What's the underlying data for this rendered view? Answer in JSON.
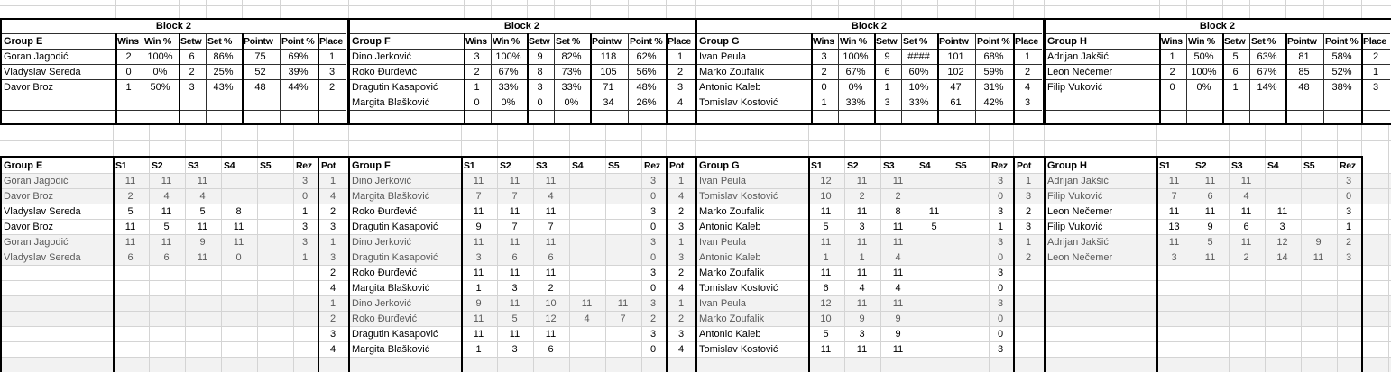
{
  "colors": {
    "thick_border": "#000000",
    "thin_border": "#2e2e2e",
    "grid_line": "#d4d4d4",
    "band_fill": "#f2f2f2",
    "text": "#000000",
    "muted_text": "#595959"
  },
  "block_label": "Block 2",
  "standings_columns": [
    "Wins",
    "Win %",
    "Setw",
    "Set %",
    "Pointw",
    "Point %",
    "Place"
  ],
  "match_columns": [
    "S1",
    "S2",
    "S3",
    "S4",
    "S5",
    "Rez"
  ],
  "pot_label": "Pot",
  "groups": [
    {
      "name": "Group E",
      "has_pot_column": true,
      "standings": [
        {
          "player": "Goran Jagodić",
          "values": [
            "2",
            "100%",
            "6",
            "86%",
            "75",
            "69%",
            "1"
          ]
        },
        {
          "player": "Vladyslav Sereda",
          "values": [
            "0",
            "0%",
            "2",
            "25%",
            "52",
            "39%",
            "3"
          ]
        },
        {
          "player": "Davor Broz",
          "values": [
            "1",
            "50%",
            "3",
            "43%",
            "48",
            "44%",
            "2"
          ]
        }
      ],
      "matches": [
        {
          "player": "Goran Jagodić",
          "sets": [
            "11",
            "11",
            "11",
            "",
            ""
          ],
          "rez": "3",
          "pot": "1"
        },
        {
          "player": "Davor Broz",
          "sets": [
            "2",
            "4",
            "4",
            "",
            ""
          ],
          "rez": "0",
          "pot": "4"
        },
        {
          "player": "Vladyslav Sereda",
          "sets": [
            "5",
            "11",
            "5",
            "8",
            ""
          ],
          "rez": "1",
          "pot": "2"
        },
        {
          "player": "Davor Broz",
          "sets": [
            "11",
            "5",
            "11",
            "11",
            ""
          ],
          "rez": "3",
          "pot": "3"
        },
        {
          "player": "Goran Jagodić",
          "sets": [
            "11",
            "11",
            "9",
            "11",
            ""
          ],
          "rez": "3",
          "pot": "1"
        },
        {
          "player": "Vladyslav Sereda",
          "sets": [
            "6",
            "6",
            "11",
            "0",
            ""
          ],
          "rez": "1",
          "pot": "3"
        },
        {
          "player": "",
          "sets": [
            "",
            "",
            "",
            "",
            ""
          ],
          "rez": "",
          "pot": "2"
        },
        {
          "player": "",
          "sets": [
            "",
            "",
            "",
            "",
            ""
          ],
          "rez": "",
          "pot": "4"
        },
        {
          "player": "",
          "sets": [
            "",
            "",
            "",
            "",
            ""
          ],
          "rez": "",
          "pot": "1"
        },
        {
          "player": "",
          "sets": [
            "",
            "",
            "",
            "",
            ""
          ],
          "rez": "",
          "pot": "2"
        },
        {
          "player": "",
          "sets": [
            "",
            "",
            "",
            "",
            ""
          ],
          "rez": "",
          "pot": "3"
        },
        {
          "player": "",
          "sets": [
            "",
            "",
            "",
            "",
            ""
          ],
          "rez": "",
          "pot": "4"
        }
      ]
    },
    {
      "name": "Group F",
      "has_pot_column": true,
      "standings": [
        {
          "player": "Dino Jerković",
          "values": [
            "3",
            "100%",
            "9",
            "82%",
            "118",
            "62%",
            "1"
          ]
        },
        {
          "player": "Roko Đurđević",
          "values": [
            "2",
            "67%",
            "8",
            "73%",
            "105",
            "56%",
            "2"
          ]
        },
        {
          "player": "Dragutin Kasapović",
          "values": [
            "1",
            "33%",
            "3",
            "33%",
            "71",
            "48%",
            "3"
          ]
        },
        {
          "player": "Margita Blašković",
          "values": [
            "0",
            "0%",
            "0",
            "0%",
            "34",
            "26%",
            "4"
          ]
        }
      ],
      "matches": [
        {
          "player": "Dino Jerković",
          "sets": [
            "11",
            "11",
            "11",
            "",
            ""
          ],
          "rez": "3",
          "pot": "1"
        },
        {
          "player": "Margita Blašković",
          "sets": [
            "7",
            "7",
            "4",
            "",
            ""
          ],
          "rez": "0",
          "pot": "4"
        },
        {
          "player": "Roko Đurđević",
          "sets": [
            "11",
            "11",
            "11",
            "",
            ""
          ],
          "rez": "3",
          "pot": "2"
        },
        {
          "player": "Dragutin Kasapović",
          "sets": [
            "9",
            "7",
            "7",
            "",
            ""
          ],
          "rez": "0",
          "pot": "3"
        },
        {
          "player": "Dino Jerković",
          "sets": [
            "11",
            "11",
            "11",
            "",
            ""
          ],
          "rez": "3",
          "pot": "1"
        },
        {
          "player": "Dragutin Kasapović",
          "sets": [
            "3",
            "6",
            "6",
            "",
            ""
          ],
          "rez": "0",
          "pot": "3"
        },
        {
          "player": "Roko Đurđević",
          "sets": [
            "11",
            "11",
            "11",
            "",
            ""
          ],
          "rez": "3",
          "pot": "2"
        },
        {
          "player": "Margita Blašković",
          "sets": [
            "1",
            "3",
            "2",
            "",
            ""
          ],
          "rez": "0",
          "pot": "4"
        },
        {
          "player": "Dino Jerković",
          "sets": [
            "9",
            "11",
            "10",
            "11",
            "11"
          ],
          "rez": "3",
          "pot": "1"
        },
        {
          "player": "Roko Đurđević",
          "sets": [
            "11",
            "5",
            "12",
            "4",
            "7"
          ],
          "rez": "2",
          "pot": "2"
        },
        {
          "player": "Dragutin Kasapović",
          "sets": [
            "11",
            "11",
            "11",
            "",
            ""
          ],
          "rez": "3",
          "pot": "3"
        },
        {
          "player": "Margita Blašković",
          "sets": [
            "1",
            "3",
            "6",
            "",
            ""
          ],
          "rez": "0",
          "pot": "4"
        }
      ]
    },
    {
      "name": "Group G",
      "has_pot_column": true,
      "standings": [
        {
          "player": "Ivan Peula",
          "values": [
            "3",
            "100%",
            "9",
            "####",
            "101",
            "68%",
            "1"
          ]
        },
        {
          "player": "Marko Zoufalik",
          "values": [
            "2",
            "67%",
            "6",
            "60%",
            "102",
            "59%",
            "2"
          ]
        },
        {
          "player": "Antonio Kaleb",
          "values": [
            "0",
            "0%",
            "1",
            "10%",
            "47",
            "31%",
            "4"
          ]
        },
        {
          "player": "Tomislav Kostović",
          "values": [
            "1",
            "33%",
            "3",
            "33%",
            "61",
            "42%",
            "3"
          ]
        }
      ],
      "matches": [
        {
          "player": "Ivan Peula",
          "sets": [
            "12",
            "11",
            "11",
            "",
            ""
          ],
          "rez": "3",
          "pot": "1"
        },
        {
          "player": "Tomislav Kostović",
          "sets": [
            "10",
            "2",
            "2",
            "",
            ""
          ],
          "rez": "0",
          "pot": "3"
        },
        {
          "player": "Marko Zoufalik",
          "sets": [
            "11",
            "11",
            "8",
            "11",
            ""
          ],
          "rez": "3",
          "pot": "2"
        },
        {
          "player": "Antonio Kaleb",
          "sets": [
            "5",
            "3",
            "11",
            "5",
            ""
          ],
          "rez": "1",
          "pot": "3"
        },
        {
          "player": "Ivan Peula",
          "sets": [
            "11",
            "11",
            "11",
            "",
            ""
          ],
          "rez": "3",
          "pot": "1"
        },
        {
          "player": "Antonio Kaleb",
          "sets": [
            "1",
            "1",
            "4",
            "",
            ""
          ],
          "rez": "0",
          "pot": "2"
        },
        {
          "player": "Marko Zoufalik",
          "sets": [
            "11",
            "11",
            "11",
            "",
            ""
          ],
          "rez": "3",
          "pot": ""
        },
        {
          "player": "Tomislav Kostović",
          "sets": [
            "6",
            "4",
            "4",
            "",
            ""
          ],
          "rez": "0",
          "pot": ""
        },
        {
          "player": "Ivan Peula",
          "sets": [
            "12",
            "11",
            "11",
            "",
            ""
          ],
          "rez": "3",
          "pot": ""
        },
        {
          "player": "Marko Zoufalik",
          "sets": [
            "10",
            "9",
            "9",
            "",
            ""
          ],
          "rez": "0",
          "pot": ""
        },
        {
          "player": "Antonio Kaleb",
          "sets": [
            "5",
            "3",
            "9",
            "",
            ""
          ],
          "rez": "0",
          "pot": ""
        },
        {
          "player": "Tomislav Kostović",
          "sets": [
            "11",
            "11",
            "11",
            "",
            ""
          ],
          "rez": "3",
          "pot": ""
        }
      ]
    },
    {
      "name": "Group H",
      "has_pot_column": false,
      "standings": [
        {
          "player": "Adrijan Jakšić",
          "values": [
            "1",
            "50%",
            "5",
            "63%",
            "81",
            "58%",
            "2"
          ]
        },
        {
          "player": "Leon Nečemer",
          "values": [
            "2",
            "100%",
            "6",
            "67%",
            "85",
            "52%",
            "1"
          ]
        },
        {
          "player": "Filip Vuković",
          "values": [
            "0",
            "0%",
            "1",
            "14%",
            "48",
            "38%",
            "3"
          ]
        }
      ],
      "matches": [
        {
          "player": "Adrijan Jakšić",
          "sets": [
            "11",
            "11",
            "11",
            "",
            ""
          ],
          "rez": "3",
          "pot": ""
        },
        {
          "player": "Filip Vuković",
          "sets": [
            "7",
            "6",
            "4",
            "",
            ""
          ],
          "rez": "0",
          "pot": ""
        },
        {
          "player": "Leon Nečemer",
          "sets": [
            "11",
            "11",
            "11",
            "11",
            ""
          ],
          "rez": "3",
          "pot": ""
        },
        {
          "player": "Filip Vuković",
          "sets": [
            "13",
            "9",
            "6",
            "3",
            ""
          ],
          "rez": "1",
          "pot": ""
        },
        {
          "player": "Adrijan Jakšić",
          "sets": [
            "11",
            "5",
            "11",
            "12",
            "9"
          ],
          "rez": "2",
          "pot": ""
        },
        {
          "player": "Leon Nečemer",
          "sets": [
            "3",
            "11",
            "2",
            "14",
            "11"
          ],
          "rez": "3",
          "pot": ""
        },
        {
          "player": "",
          "sets": [
            "",
            "",
            "",
            "",
            ""
          ],
          "rez": "",
          "pot": ""
        },
        {
          "player": "",
          "sets": [
            "",
            "",
            "",
            "",
            ""
          ],
          "rez": "",
          "pot": ""
        },
        {
          "player": "",
          "sets": [
            "",
            "",
            "",
            "",
            ""
          ],
          "rez": "",
          "pot": ""
        },
        {
          "player": "",
          "sets": [
            "",
            "",
            "",
            "",
            ""
          ],
          "rez": "",
          "pot": ""
        },
        {
          "player": "",
          "sets": [
            "",
            "",
            "",
            "",
            ""
          ],
          "rez": "",
          "pot": ""
        },
        {
          "player": "",
          "sets": [
            "",
            "",
            "",
            "",
            ""
          ],
          "rez": "",
          "pot": ""
        }
      ]
    }
  ]
}
